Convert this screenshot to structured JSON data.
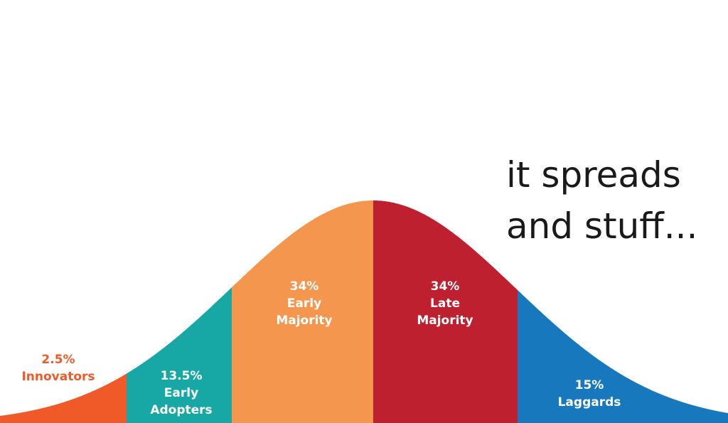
{
  "caption": {
    "line1": "it spreads",
    "line2": "and stuff..."
  },
  "chart_data": {
    "type": "area",
    "segments": [
      {
        "percent_label": "2.5%",
        "name_lines": [
          "Innovators"
        ],
        "value": 2.5,
        "color": "#f05a28",
        "label_color": "#f05a28"
      },
      {
        "percent_label": "13.5%",
        "name_lines": [
          "Early",
          "Adopters"
        ],
        "value": 13.5,
        "color": "#17a8a6",
        "label_color": "#ffffff"
      },
      {
        "percent_label": "34%",
        "name_lines": [
          "Early",
          "Majority"
        ],
        "value": 34,
        "color": "#f5964f",
        "label_color": "#ffffff"
      },
      {
        "percent_label": "34%",
        "name_lines": [
          "Late",
          "Majority"
        ],
        "value": 34,
        "color": "#bf2030",
        "label_color": "#ffffff"
      },
      {
        "percent_label": "15%",
        "name_lines": [
          "Laggards"
        ],
        "value": 15,
        "color": "#1778be",
        "label_color": "#ffffff"
      }
    ]
  }
}
